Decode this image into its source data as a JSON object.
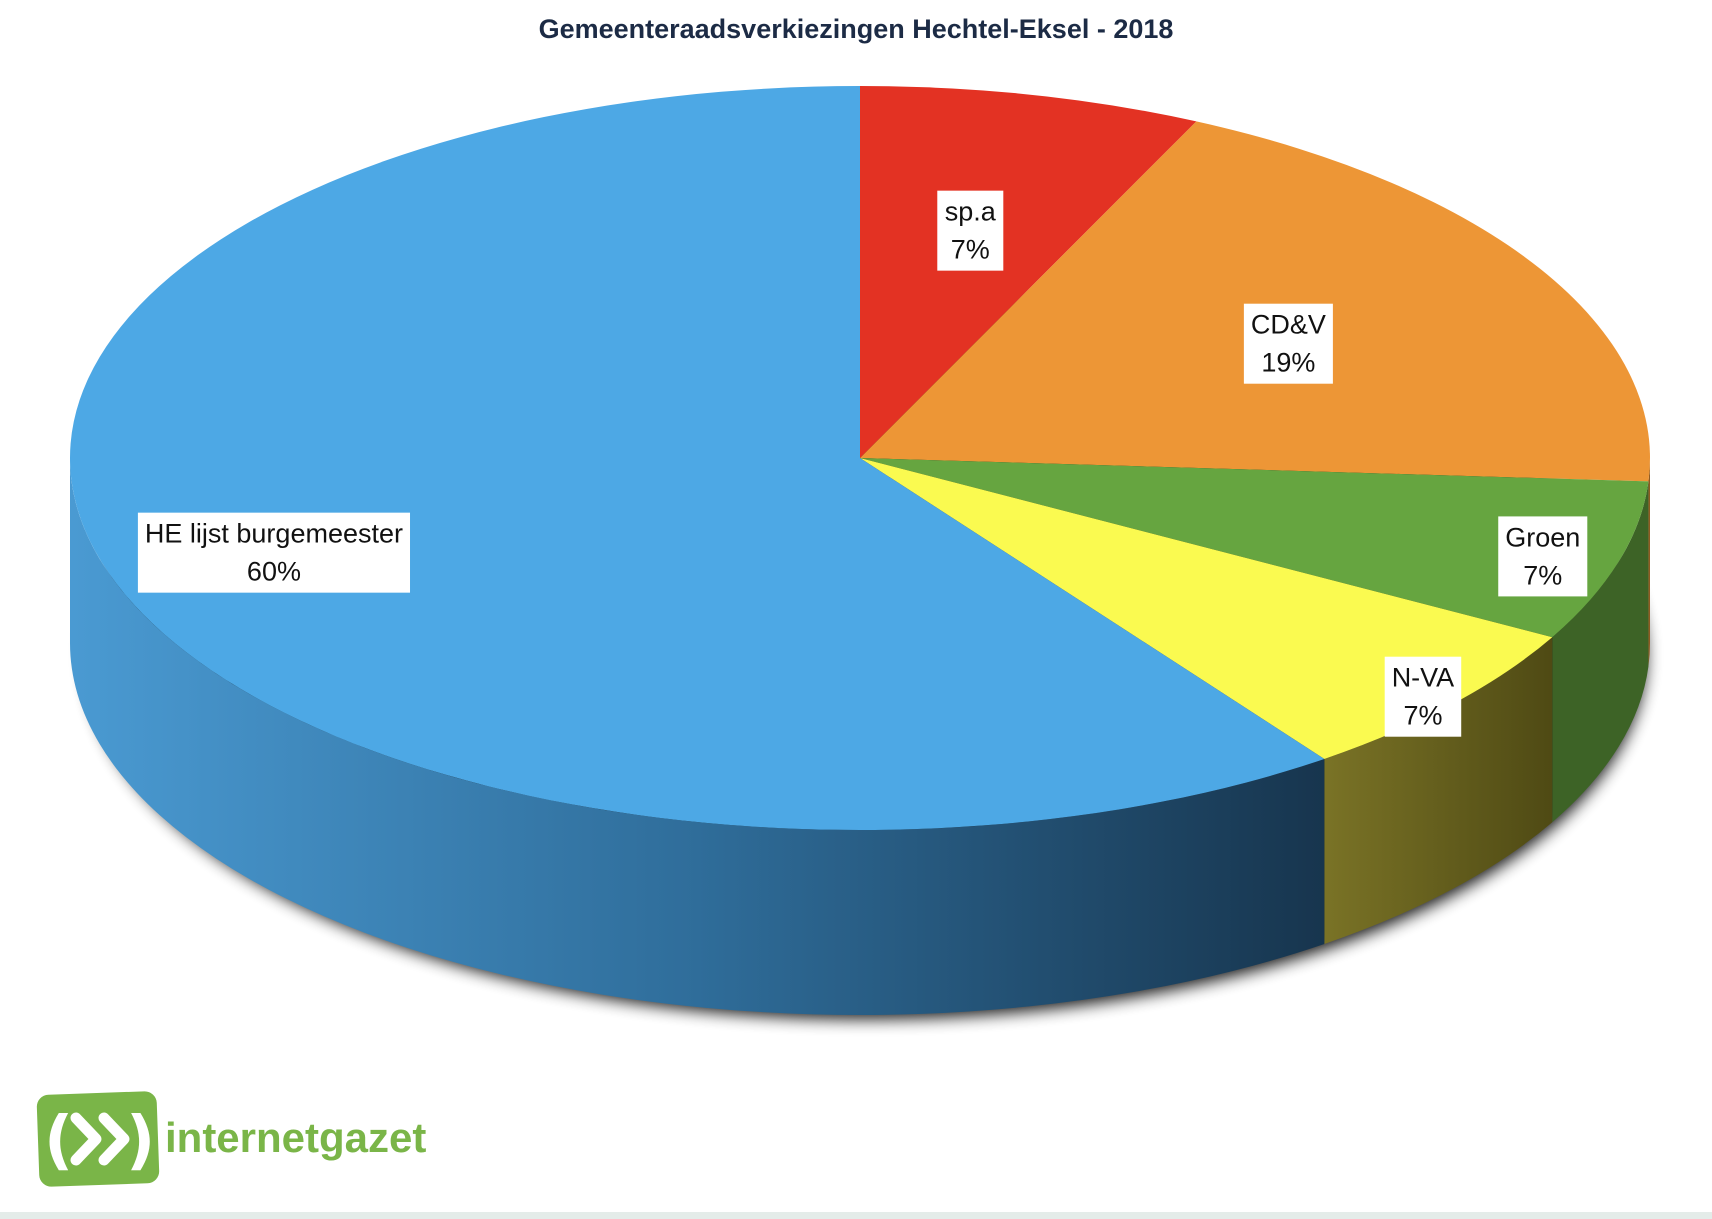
{
  "chart_data": {
    "type": "pie",
    "title": "Gemeenteraadsverkiezingen Hechtel-Eksel - 2018",
    "three_d": true,
    "slices": [
      {
        "label": "sp.a",
        "value": 7,
        "value_label": "7%",
        "color": "#e33223"
      },
      {
        "label": "CD&V",
        "value": 19,
        "value_label": "19%",
        "color": "#ed9636"
      },
      {
        "label": "Groen",
        "value": 7,
        "value_label": "7%",
        "color": "#66a540"
      },
      {
        "label": "N-VA",
        "value": 7,
        "value_label": "7%",
        "color": "#fafa50"
      },
      {
        "label": "HE lijst burgemeester",
        "value": 60,
        "value_label": "60%",
        "color": "#4da8e5"
      }
    ],
    "legend": "none",
    "data_labels": "on-slice"
  },
  "logo": {
    "text": "internetgazet",
    "icon": "play-forward-icon",
    "color": "#7ab548"
  }
}
